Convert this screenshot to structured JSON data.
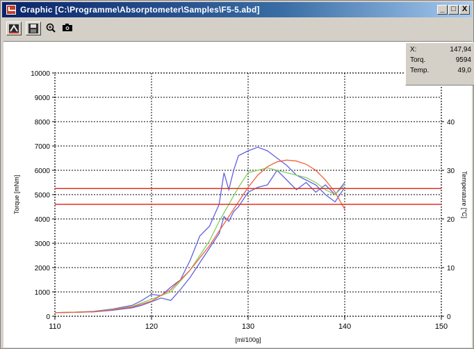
{
  "window": {
    "title": "Graphic   [C:\\Programme\\Absorptometer\\Samples\\F5-5.abd]",
    "buttons": [
      "_",
      "□",
      "X"
    ]
  },
  "toolbar": {
    "icons": [
      "sample-icon",
      "save-icon",
      "zoom-icon",
      "camera-icon"
    ]
  },
  "readout": {
    "x_label": "X:",
    "x_value": "147,94",
    "torq_label": "Torq.",
    "torq_value": "9594",
    "temp_label": "Temp.",
    "temp_value": "49,0"
  },
  "chart_data": {
    "type": "line",
    "xlabel": "[ml/100g]",
    "ylabel": "Torque [mNm]",
    "y2label": "Temperature [°C]",
    "xlim": [
      110,
      150
    ],
    "ylim": [
      0,
      10000
    ],
    "y2lim": [
      0,
      50
    ],
    "xticks": [
      110,
      120,
      130,
      140,
      150
    ],
    "yticks": [
      0,
      1000,
      2000,
      3000,
      4000,
      5000,
      6000,
      7000,
      8000,
      9000,
      10000
    ],
    "y2ticks": [
      0,
      10,
      20,
      30,
      40
    ],
    "grid": true,
    "colors": {
      "upper": "#6060e0",
      "lower": "#6060e0",
      "mean": "#80d060",
      "fit": "#f06040",
      "limit": "#e03020"
    },
    "series": [
      {
        "key": "upper",
        "x": [
          110,
          112,
          114,
          116,
          118,
          119,
          120,
          121,
          122,
          123,
          124,
          125,
          126,
          127,
          127.5,
          128,
          128.5,
          129,
          130,
          131,
          132,
          133,
          134,
          135,
          136,
          137,
          138,
          139,
          140
        ],
        "values": [
          150,
          170,
          200,
          300,
          450,
          650,
          900,
          850,
          1200,
          1500,
          2300,
          3300,
          3700,
          4600,
          5900,
          5200,
          6000,
          6600,
          6800,
          6950,
          6800,
          6500,
          6200,
          5800,
          5600,
          5400,
          5000,
          4700,
          5300
        ]
      },
      {
        "key": "lower",
        "x": [
          110,
          112,
          114,
          116,
          118,
          119,
          120,
          121,
          122,
          123,
          124,
          125,
          126,
          127,
          127.5,
          128,
          128.5,
          129,
          130,
          131,
          132,
          133,
          134,
          135,
          136,
          137,
          138,
          139,
          140
        ],
        "values": [
          150,
          160,
          180,
          250,
          350,
          450,
          600,
          750,
          650,
          1100,
          1600,
          2200,
          2800,
          3400,
          4100,
          3900,
          4300,
          4500,
          5100,
          5300,
          5400,
          6000,
          5600,
          5200,
          5500,
          5100,
          5400,
          5000,
          5500
        ]
      },
      {
        "key": "mean",
        "x": [
          110,
          112,
          114,
          116,
          118,
          120,
          122,
          124,
          126,
          127,
          128,
          129,
          130,
          131,
          132,
          133,
          134,
          135,
          136,
          137,
          138,
          139,
          140
        ],
        "values": [
          150,
          165,
          190,
          280,
          400,
          700,
          1000,
          1900,
          3100,
          3900,
          4600,
          5300,
          5900,
          6000,
          6100,
          6000,
          5900,
          5800,
          5700,
          5500,
          5200,
          5000,
          5400
        ]
      },
      {
        "key": "fit",
        "x": [
          110,
          112,
          114,
          116,
          118,
          120,
          122,
          124,
          126,
          128,
          130,
          131,
          132,
          133,
          134,
          135,
          136,
          137,
          138,
          139,
          140
        ],
        "values": [
          150,
          160,
          190,
          270,
          380,
          620,
          1100,
          1900,
          2900,
          4100,
          5300,
          5800,
          6150,
          6350,
          6420,
          6380,
          6250,
          6000,
          5600,
          5100,
          4400
        ]
      }
    ],
    "hlines": [
      {
        "key": "limit",
        "y": 5250
      },
      {
        "key": "limit",
        "y": 4600
      }
    ]
  }
}
